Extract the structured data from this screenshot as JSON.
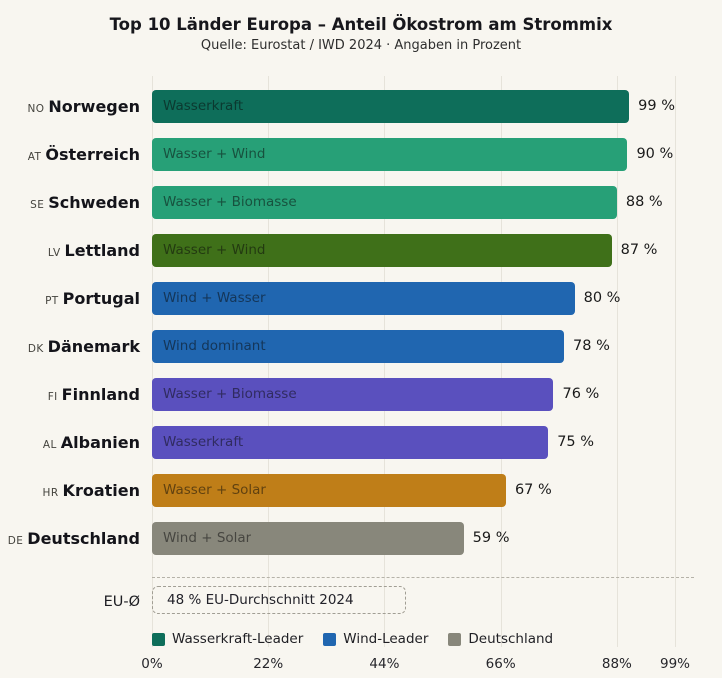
{
  "header": {
    "title": "Top 10 Länder Europa – Anteil Ökostrom am Strommix",
    "subtitle": "Quelle: Eurostat / IWD 2024 · Angaben in Prozent"
  },
  "colors": {
    "background": "#f8f6f0",
    "gridline": "#e6e3da",
    "hydro_dark_green": "#0e6e5a",
    "green": "#27a077",
    "olive_green": "#3f7019",
    "blue": "#2066b0",
    "purple": "#5a50be",
    "orange": "#bf7e18",
    "gray": "#88877b"
  },
  "chart_data": {
    "type": "bar",
    "orientation": "horizontal",
    "title": "Top 10 Länder Europa – Anteil Ökostrom am Strommix",
    "subtitle": "Quelle: Eurostat / IWD 2024 · Angaben in Prozent",
    "xlabel": "",
    "ylabel": "",
    "xlim": [
      0,
      99
    ],
    "grid": true,
    "x_ticks": [
      "0%",
      "22%",
      "44%",
      "66%",
      "88%",
      "99%"
    ],
    "x_tick_values": [
      0,
      22,
      44,
      66,
      88,
      99
    ],
    "rows": [
      {
        "code": "NO",
        "country": "Norwegen",
        "bar_label": "Wasserkraft",
        "value": 99,
        "value_label": "99 %",
        "color": "#0e6e5a"
      },
      {
        "code": "AT",
        "country": "Österreich",
        "bar_label": "Wasser + Wind",
        "value": 90,
        "value_label": "90 %",
        "color": "#27a077"
      },
      {
        "code": "SE",
        "country": "Schweden",
        "bar_label": "Wasser + Biomasse",
        "value": 88,
        "value_label": "88 %",
        "color": "#27a077"
      },
      {
        "code": "LV",
        "country": "Lettland",
        "bar_label": "Wasser + Wind",
        "value": 87,
        "value_label": "87 %",
        "color": "#3f7019"
      },
      {
        "code": "PT",
        "country": "Portugal",
        "bar_label": "Wind + Wasser",
        "value": 80,
        "value_label": "80 %",
        "color": "#2066b0"
      },
      {
        "code": "DK",
        "country": "Dänemark",
        "bar_label": "Wind dominant",
        "value": 78,
        "value_label": "78 %",
        "color": "#2066b0"
      },
      {
        "code": "FI",
        "country": "Finnland",
        "bar_label": "Wasser + Biomasse",
        "value": 76,
        "value_label": "76 %",
        "color": "#5a50be"
      },
      {
        "code": "AL",
        "country": "Albanien",
        "bar_label": "Wasserkraft",
        "value": 75,
        "value_label": "75 %",
        "color": "#5a50be"
      },
      {
        "code": "HR",
        "country": "Kroatien",
        "bar_label": "Wasser + Solar",
        "value": 67,
        "value_label": "67 %",
        "color": "#bf7e18"
      },
      {
        "code": "DE",
        "country": "Deutschland",
        "bar_label": "Wind + Solar",
        "value": 59,
        "value_label": "59 %",
        "color": "#88877b"
      }
    ],
    "eu_average": {
      "label": "EU-Ø",
      "box_label": "48 % EU-Durchschnitt 2024",
      "value": 48
    },
    "legend": [
      {
        "label": "Wasserkraft-Leader",
        "color": "#0e6e5a"
      },
      {
        "label": "Wind-Leader",
        "color": "#2066b0"
      },
      {
        "label": "Deutschland",
        "color": "#88877b"
      }
    ],
    "legend_position": "bottom"
  }
}
